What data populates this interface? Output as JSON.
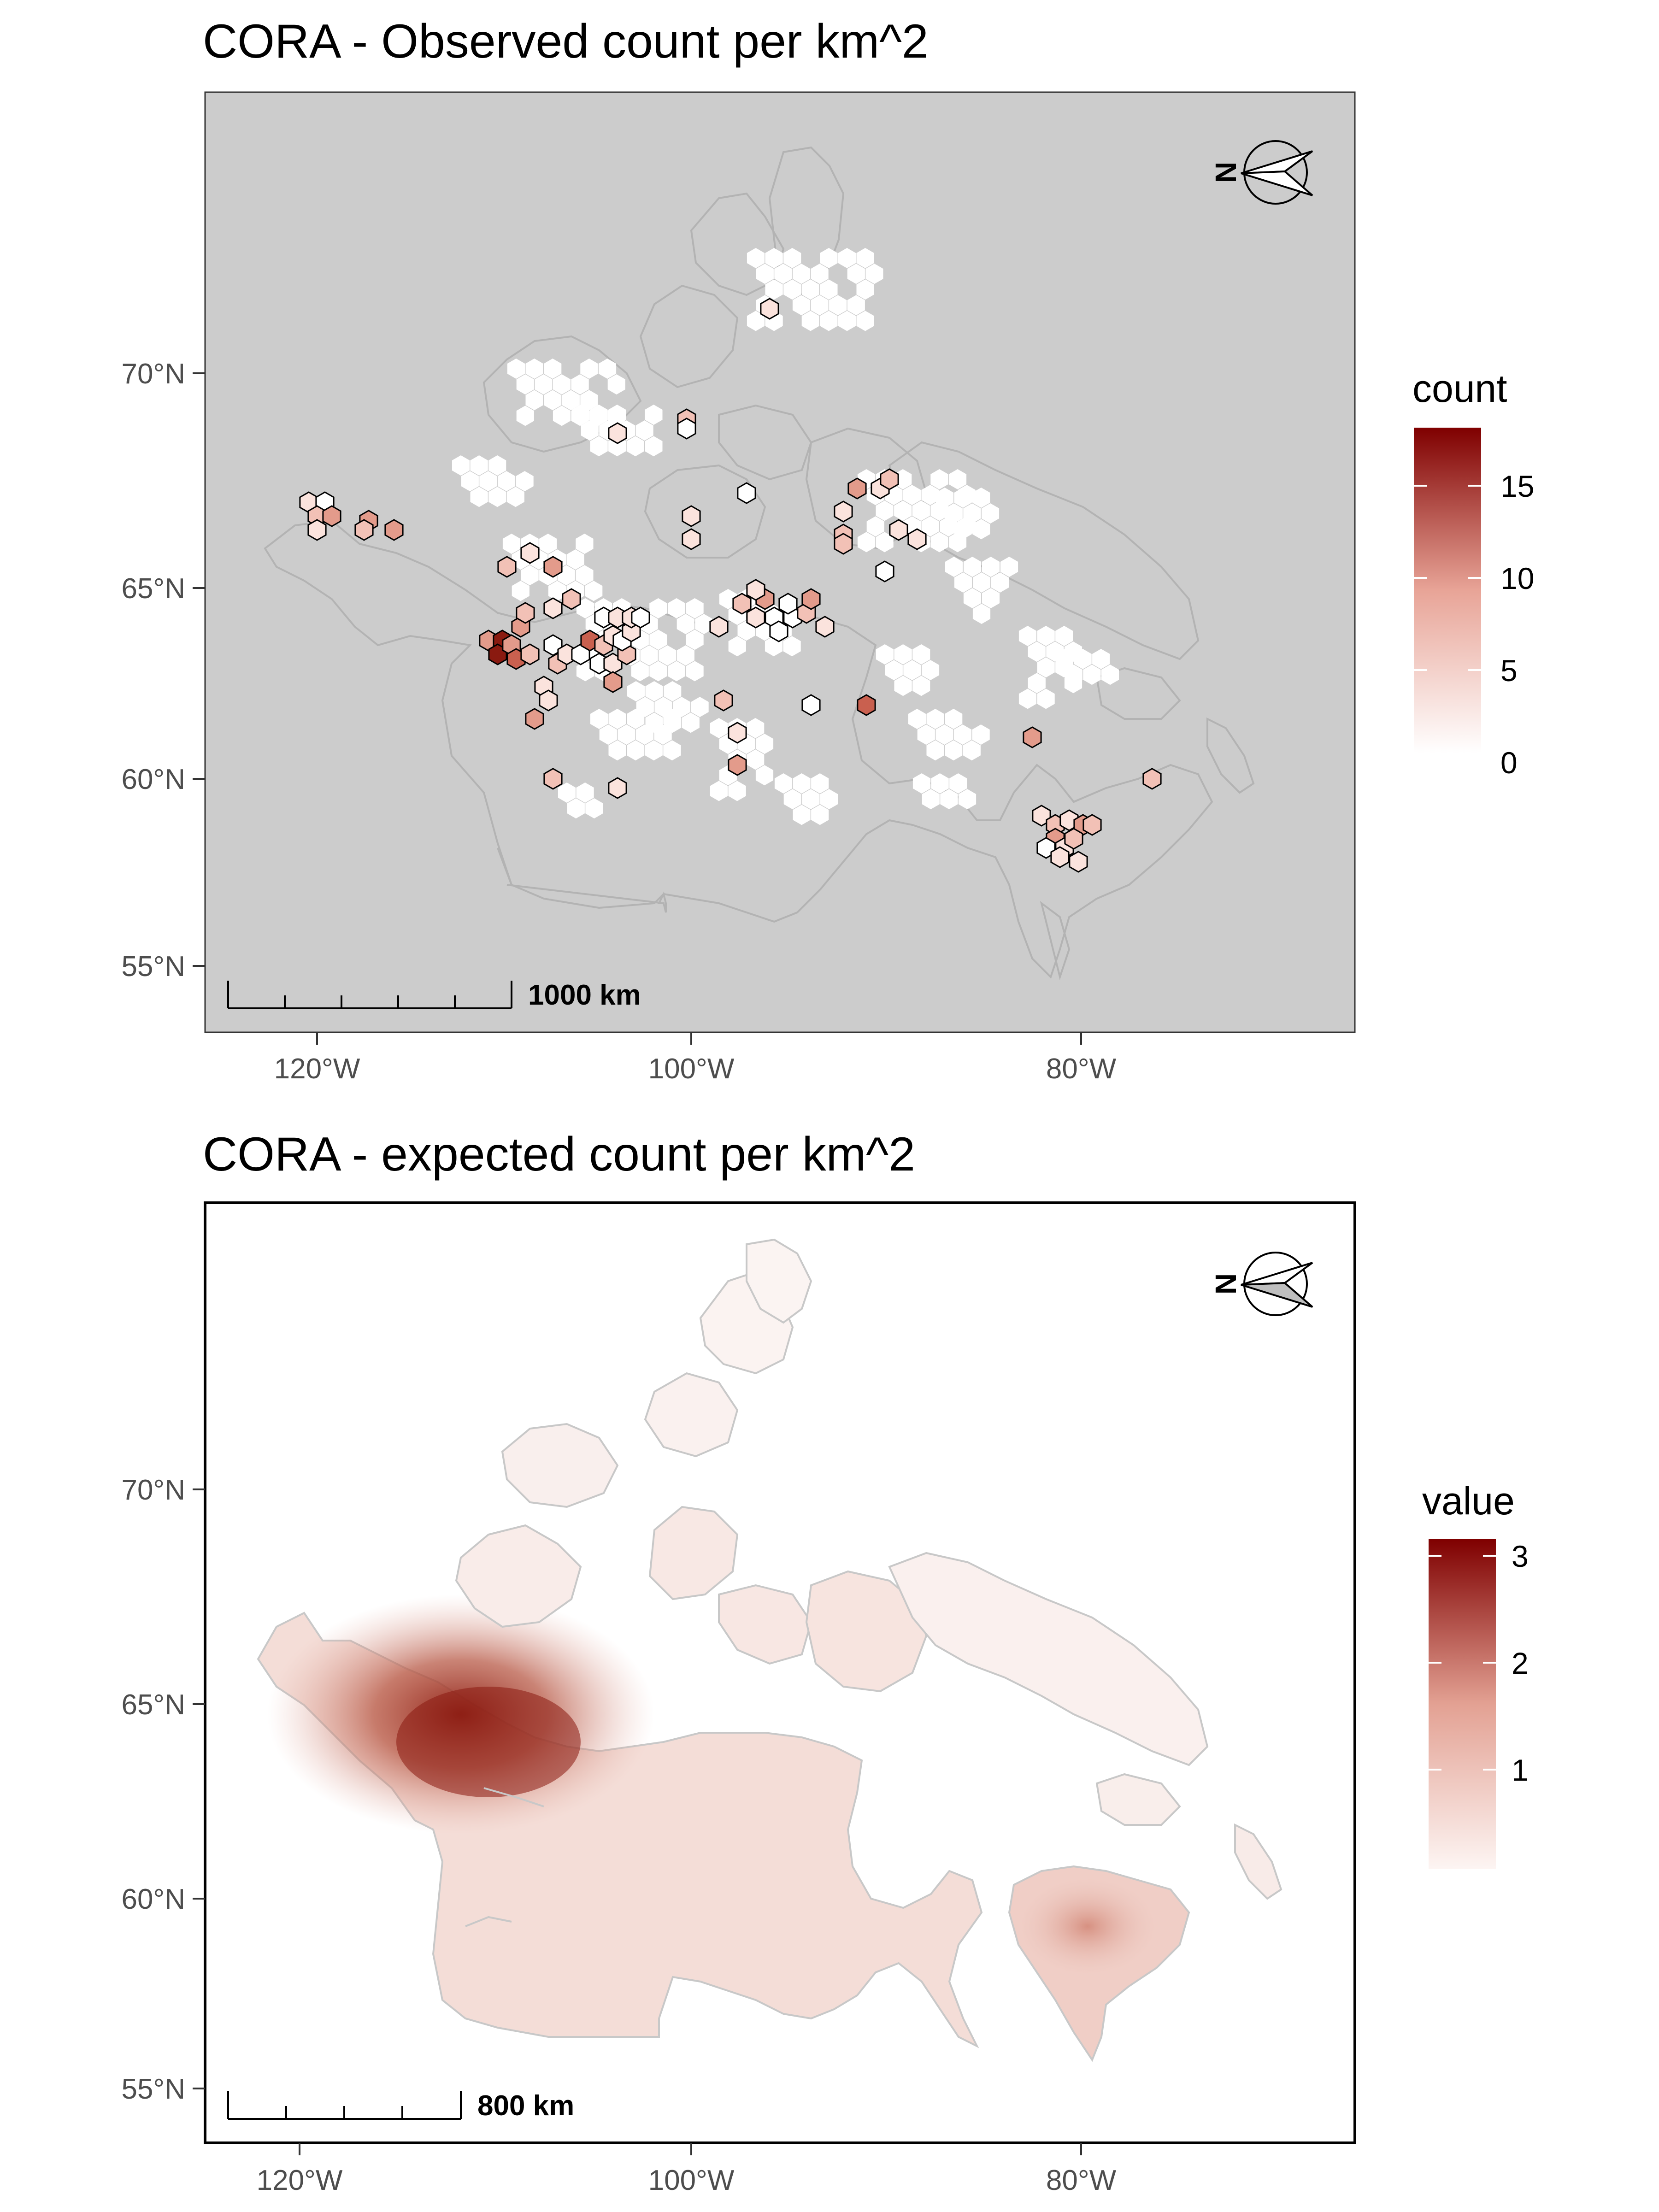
{
  "figure": {
    "panels": [
      {
        "title": "CORA - Observed count per km^2",
        "legend": {
          "title": "count",
          "ticks": [
            "15",
            "10",
            "5",
            "0"
          ],
          "low_color": "#ffffff",
          "high_color": "#7f0000"
        },
        "x_ticks": [
          "120°W",
          "100°W",
          "80°W"
        ],
        "y_ticks": [
          "70°N",
          "65°N",
          "60°N",
          "55°N"
        ],
        "scale_bar": {
          "label": "1000 km"
        },
        "north_arrow": {
          "label": "N"
        },
        "panel_background": "#cccccc"
      },
      {
        "title": "CORA - expected count per km^2",
        "legend": {
          "title": "value",
          "ticks": [
            "3",
            "2",
            "1"
          ],
          "low_color": "#fdf5f3",
          "high_color": "#7f0000"
        },
        "x_ticks": [
          "120°W",
          "100°W",
          "80°W"
        ],
        "y_ticks": [
          "70°N",
          "65°N",
          "60°N",
          "55°N"
        ],
        "scale_bar": {
          "label": "800 km"
        },
        "north_arrow": {
          "label": "N"
        },
        "panel_background": "#ffffff"
      }
    ]
  }
}
